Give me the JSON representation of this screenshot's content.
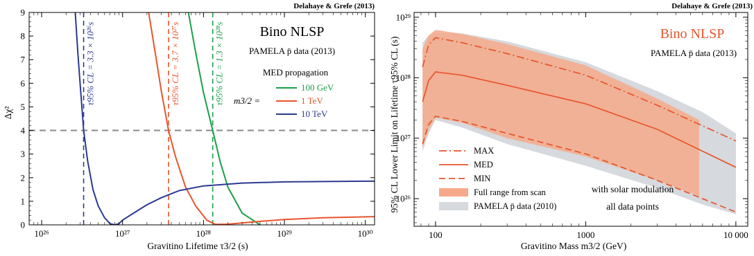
{
  "chart_data": [
    {
      "type": "line",
      "credit": "Delahaye & Grefe (2013)",
      "title": "Bino NLSP",
      "subtitle": "PAMELA p̄ data (2013)",
      "legend_title": "MED propagation",
      "legend_variable": "m3/2 =",
      "xlabel": "Gravitino Lifetime τ3/2 (s)",
      "ylabel": "Δχ²",
      "xscale": "log",
      "xlim": [
        7e+25,
        1.3e+30
      ],
      "ylim": [
        0,
        9
      ],
      "x_ticks": [
        {
          "value": 1e+26,
          "label": "10²⁶"
        },
        {
          "value": 1e+27,
          "label": "10²⁷"
        },
        {
          "value": 1e+28,
          "label": "10²⁸"
        },
        {
          "value": 1e+29,
          "label": "10²⁹"
        },
        {
          "value": 1e+30,
          "label": "10³⁰"
        }
      ],
      "y_ticks": [
        0,
        1,
        2,
        3,
        4,
        5,
        6,
        7,
        8,
        9
      ],
      "threshold": {
        "y": 4,
        "color": "#888888"
      },
      "limits": [
        {
          "x": 3.3e+26,
          "label": "τ95% CL = 3.3 × 10²⁶s",
          "color": "#2b3990"
        },
        {
          "x": 3.7e+27,
          "label": "τ95% CL = 3.7 × 10²⁷s",
          "color": "#e8542a"
        },
        {
          "x": 1.3e+28,
          "label": "τ95% CL = 1.3 × 10²⁸s",
          "color": "#1a9e4a"
        }
      ],
      "series": [
        {
          "name": "100 GeV",
          "color": "#1a9e4a",
          "x": [
            6.5e+27,
            8e+27,
            1e+28,
            1.3e+28,
            1.6e+28,
            2e+28,
            3e+28,
            5e+28
          ],
          "y": [
            9,
            7.3,
            5.6,
            4,
            2.7,
            1.6,
            0.5,
            0
          ]
        },
        {
          "name": "1 TeV",
          "color": "#e8542a",
          "x": [
            2.1e+27,
            2.5e+27,
            3e+27,
            3.7e+27,
            4.5e+27,
            6e+27,
            8e+27,
            1.1e+28,
            1.4e+28,
            2e+28,
            4e+28,
            1e+29,
            3e+29,
            1e+30,
            1.3e+30
          ],
          "y": [
            9,
            7.4,
            5.7,
            4,
            2.9,
            1.6,
            0.8,
            0.2,
            0.02,
            0.03,
            0.12,
            0.23,
            0.3,
            0.34,
            0.35
          ]
        },
        {
          "name": "10 TeV",
          "color": "#2b3990",
          "x": [
            2.6e+26,
            2.8e+26,
            3e+26,
            3.3e+26,
            3.7e+26,
            4.3e+26,
            5e+26,
            6e+26,
            7e+26,
            8e+26,
            9e+26,
            1e+27,
            1.3e+27,
            2e+27,
            3e+27,
            5e+27,
            1e+28,
            3e+28,
            1e+29,
            1e+30,
            1.3e+30
          ],
          "y": [
            9,
            7.3,
            5.9,
            4,
            2.7,
            1.5,
            0.8,
            0.3,
            0.05,
            0,
            0.05,
            0.2,
            0.45,
            0.85,
            1.15,
            1.45,
            1.65,
            1.77,
            1.82,
            1.85,
            1.85
          ]
        }
      ]
    },
    {
      "type": "area",
      "credit": "Delahaye & Grefe (2013)",
      "title": "Bino NLSP",
      "subtitle": "PAMELA p̄ data (2013)",
      "title_color": "#e8542a",
      "xlabel": "Gravitino Mass m3/2 (GeV)",
      "ylabel": "95% CL Lower Limit on Lifetime τ95% CL (s)",
      "xscale": "log",
      "yscale": "log",
      "xlim": [
        72,
        12000
      ],
      "ylim": [
        3.5e+25,
        1.2e+29
      ],
      "x_ticks": [
        {
          "value": 100,
          "label": "100"
        },
        {
          "value": 1000,
          "label": "1000"
        },
        {
          "value": 10000,
          "label": "10 000"
        }
      ],
      "y_ticks": [
        {
          "value": 1e+26,
          "label": "10²⁶"
        },
        {
          "value": 1e+27,
          "label": "10²⁷"
        },
        {
          "value": 1e+28,
          "label": "10²⁸"
        },
        {
          "value": 1e+29,
          "label": "10²⁹"
        }
      ],
      "note_lines": [
        "with solar modulation",
        "all data points"
      ],
      "legend": [
        {
          "label": "MAX",
          "style": "dashdot",
          "color": "#e8542a"
        },
        {
          "label": "MED",
          "style": "solid",
          "color": "#e8542a"
        },
        {
          "label": "MIN",
          "style": "dashed",
          "color": "#e8542a"
        },
        {
          "label": "Full range from scan",
          "style": "band",
          "color": "#f6a98a"
        },
        {
          "label": "PAMELA p̄ data (2010)",
          "style": "band",
          "color": "#d6d9dd"
        }
      ],
      "bands": [
        {
          "name": "PAMELA p̄ data (2010)",
          "color": "#d6d9dd",
          "x": [
            82,
            90,
            100,
            150,
            300,
            1000,
            3000,
            6000,
            10000
          ],
          "upper": [
            3.8e+28,
            5e+28,
            5.5e+28,
            5.4e+28,
            4e+28,
            1.8e+28,
            6e+27,
            2.7e+27,
            1.2e+27
          ],
          "lower": [
            6e+26,
            1.2e+27,
            2e+27,
            1.5e+27,
            8e+26,
            3.5e+26,
            1.5e+26,
            8e+25,
            5.5e+25
          ]
        },
        {
          "name": "Full range from scan",
          "color": "#f6a98a",
          "x": [
            82,
            90,
            100,
            150,
            300,
            1000,
            3000,
            5700
          ],
          "upper": [
            3e+28,
            5e+28,
            6.2e+28,
            5.3e+28,
            3.6e+28,
            1.6e+28,
            4.5e+27,
            2e+27
          ],
          "lower": [
            7e+26,
            1.4e+27,
            2.2e+27,
            1.8e+27,
            1e+27,
            5e+26,
            2e+26,
            1.1e+26
          ]
        }
      ],
      "series": [
        {
          "name": "MAX",
          "style": "dashdot",
          "color": "#e8542a",
          "x": [
            82,
            90,
            100,
            150,
            300,
            1000,
            3000,
            10000
          ],
          "y": [
            1.5e+28,
            3.5e+28,
            4.6e+28,
            3.8e+28,
            2.5e+28,
            1.1e+28,
            3.5e+27,
            9e+26
          ]
        },
        {
          "name": "MED",
          "style": "solid",
          "color": "#e8542a",
          "x": [
            82,
            90,
            100,
            150,
            300,
            1000,
            3000,
            10000
          ],
          "y": [
            4e+27,
            9e+27,
            1.25e+28,
            1.1e+28,
            7.5e+27,
            3.7e+27,
            1.4e+27,
            3.3e+26
          ]
        },
        {
          "name": "MIN",
          "style": "dashed",
          "color": "#e8542a",
          "x": [
            82,
            90,
            100,
            150,
            300,
            1000,
            3000,
            10000
          ],
          "y": [
            8e+26,
            1.7e+27,
            2.3e+27,
            1.9e+27,
            1.2e+27,
            5.5e+26,
            2e+26,
            6e+25
          ]
        }
      ]
    }
  ]
}
